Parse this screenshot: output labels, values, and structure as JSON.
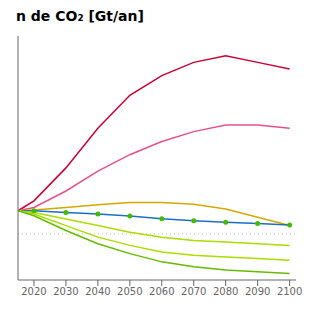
{
  "chart_data": {
    "type": "line",
    "title": "n de CO₂ [Gt/an]",
    "x": [
      2015,
      2020,
      2030,
      2040,
      2050,
      2060,
      2070,
      2080,
      2090,
      2100
    ],
    "series": [
      {
        "color": "#cc0033",
        "values": [
          7,
          10,
          20,
          32,
          42,
          48,
          52,
          54,
          52,
          50
        ]
      },
      {
        "color": "#e8508a",
        "values": [
          7,
          8,
          13,
          19,
          24,
          28,
          31,
          33,
          33,
          32
        ]
      },
      {
        "color": "#d4a800",
        "values": [
          7,
          7.2,
          8,
          8.8,
          9.5,
          9.5,
          9.0,
          7.5,
          5.0,
          2.5
        ]
      },
      {
        "color": "#1a6fc4",
        "values": [
          7,
          7,
          6.5,
          6.0,
          5.4,
          4.6,
          4.0,
          3.5,
          3.1,
          2.7
        ]
      },
      {
        "type": "scatter",
        "marker": "circle",
        "color": "#44bb00",
        "values": [
          null,
          7,
          6.5,
          6.0,
          5.4,
          4.6,
          4.0,
          3.5,
          3.1,
          2.7
        ]
      },
      {
        "color": "#aadd00",
        "values": [
          7,
          6.5,
          4.5,
          2.5,
          0.5,
          -1.0,
          -2.0,
          -2.5,
          -3.0,
          -3.5
        ]
      },
      {
        "color": "#aadd00",
        "values": [
          7,
          6.0,
          2.5,
          -1.0,
          -3.5,
          -5.5,
          -6.5,
          -7.0,
          -7.5,
          -8.0
        ]
      },
      {
        "color": "#66bb00",
        "values": [
          7,
          5.5,
          1.0,
          -3.0,
          -6.0,
          -8.5,
          -10.0,
          -11.0,
          -11.5,
          -12.0
        ]
      }
    ],
    "hlines": [
      {
        "y": 0,
        "color": "#bbbbbb",
        "line_style": "dotted"
      }
    ],
    "xlim": [
      2015,
      2102
    ],
    "xticks": [
      2020,
      2030,
      2040,
      2050,
      2060,
      2070,
      2080,
      2090,
      2100
    ],
    "ylim": [
      -14,
      60
    ],
    "tick_labels": "x",
    "grid": false
  }
}
